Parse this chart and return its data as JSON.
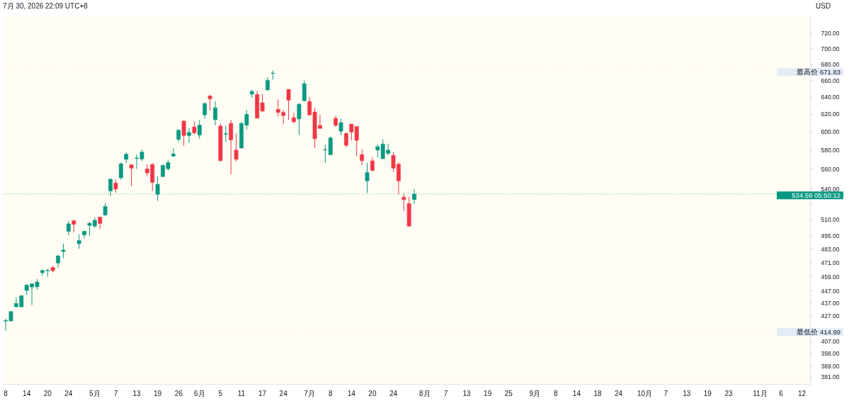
{
  "chart_data": {
    "type": "candlestick",
    "title": "7月 30, 2026 22:09 UTC+8",
    "ylabel": "USD",
    "log": true,
    "categories": [
      "8",
      null,
      null,
      null,
      "14",
      null,
      null,
      null,
      "20",
      null,
      null,
      null,
      "24",
      null,
      null,
      null,
      null,
      "5月",
      null,
      null,
      null,
      "7",
      null,
      null,
      null,
      "13",
      null,
      null,
      null,
      "19",
      null,
      null,
      null,
      "26",
      null,
      null,
      null,
      "6月",
      null,
      null,
      null,
      "5",
      null,
      null,
      null,
      "11",
      null,
      null,
      null,
      "17",
      null,
      null,
      null,
      "24",
      null,
      null,
      null,
      null,
      "7月",
      null,
      null,
      null,
      "8",
      null,
      null,
      null,
      "14",
      null,
      null,
      null,
      "20",
      null,
      null,
      null,
      "24",
      null,
      null,
      null,
      null,
      null,
      "8月",
      null,
      null,
      null,
      "7",
      null,
      null,
      null,
      "13",
      null,
      null,
      null,
      "19",
      null,
      null,
      null,
      "25",
      null,
      null,
      null,
      null,
      "9月",
      null,
      null,
      null,
      "8",
      null,
      null,
      null,
      "14",
      null,
      null,
      null,
      "18",
      null,
      null,
      null,
      "24",
      null,
      null,
      null,
      null,
      "10月",
      null,
      null,
      null,
      "7",
      null,
      null,
      null,
      "13",
      null,
      null,
      null,
      "19",
      null,
      null,
      null,
      "23",
      null,
      null,
      null,
      null,
      null,
      "11月",
      null,
      null,
      null,
      "6",
      null,
      null,
      null,
      "12",
      null
    ],
    "ohlc": [
      [
        422.5,
        424.4,
        414.99,
        423.0
      ],
      [
        422.6,
        430.3,
        422.3,
        430.0
      ],
      [
        433.8,
        441.4,
        433.3,
        436.5
      ],
      [
        433.8,
        443.0,
        433.3,
        442.8
      ],
      [
        447.1,
        452.6,
        443.5,
        451.6
      ],
      [
        450.0,
        453.2,
        435.2,
        452.6
      ],
      [
        450.2,
        456.5,
        447.7,
        454.2
      ],
      [
        462.1,
        465.0,
        459.5,
        463.9
      ],
      [
        463.8,
        465.5,
        458.6,
        464.1
      ],
      [
        466.5,
        468.1,
        462.5,
        463.9
      ],
      [
        470.5,
        477.7,
        466.5,
        476.6
      ],
      [
        480.6,
        487.6,
        474.6,
        481.9
      ],
      [
        498.9,
        508.7,
        495.3,
        505.9
      ],
      [
        508.7,
        509.8,
        497.9,
        505.4
      ],
      [
        487.6,
        496.2,
        482.9,
        490.4
      ],
      [
        495.7,
        499.5,
        492.5,
        498.9
      ],
      [
        504.4,
        507.5,
        494.6,
        506.4
      ],
      [
        503.7,
        512.0,
        502.2,
        509.2
      ],
      [
        512.1,
        512.8,
        501.0,
        506.2
      ],
      [
        514.3,
        525.7,
        513.2,
        522.3
      ],
      [
        537.7,
        550.3,
        532.5,
        549.5
      ],
      [
        545.5,
        549.1,
        536.0,
        539.6
      ],
      [
        550.9,
        566.6,
        549.1,
        565.4
      ],
      [
        570.1,
        577.5,
        566.3,
        575.5
      ],
      [
        564.2,
        565.4,
        542.5,
        560.8
      ],
      [
        571.0,
        575.5,
        560.0,
        571.5
      ],
      [
        570.5,
        580.6,
        568.3,
        577.7
      ],
      [
        560.0,
        564.6,
        552.6,
        555.9
      ],
      [
        564.6,
        566.0,
        537.5,
        546.3
      ],
      [
        534.4,
        552.6,
        527.9,
        544.3
      ],
      [
        552.1,
        564.5,
        552.0,
        563.7
      ],
      [
        560.3,
        569.6,
        558.2,
        566.6
      ],
      [
        573.6,
        581.9,
        572.3,
        575.8
      ],
      [
        591.5,
        603.0,
        588.9,
        601.6
      ],
      [
        611.8,
        613.2,
        584.6,
        595.8
      ],
      [
        595.8,
        603.9,
        587.6,
        599.2
      ],
      [
        605.3,
        611.3,
        597.1,
        598.8
      ],
      [
        596.3,
        613.2,
        592.3,
        607.3
      ],
      [
        619.0,
        633.5,
        614.5,
        632.1
      ],
      [
        641.0,
        642.3,
        624.0,
        637.7
      ],
      [
        613.5,
        634.9,
        607.1,
        627.2
      ],
      [
        606.3,
        609.0,
        568.6,
        568.6
      ],
      [
        597.3,
        606.8,
        588.9,
        597.9
      ],
      [
        609.3,
        613.2,
        554.5,
        591.0
      ],
      [
        579.9,
        598.0,
        567.8,
        570.1
      ],
      [
        582.1,
        611.0,
        582.0,
        609.3
      ],
      [
        607.3,
        624.6,
        602.4,
        619.6
      ],
      [
        643.3,
        648.8,
        639.0,
        646.5
      ],
      [
        642.9,
        647.3,
        615.0,
        615.2
      ],
      [
        633.0,
        643.3,
        622.6,
        623.4
      ],
      [
        648.2,
        663.9,
        647.5,
        659.8
      ],
      [
        668.3,
        671.83,
        661.0,
        668.7
      ],
      [
        625.4,
        636.9,
        617.4,
        621.8
      ],
      [
        621.8,
        624.6,
        608.4,
        618.2
      ],
      [
        648.8,
        649.4,
        613.6,
        636.2
      ],
      [
        615.8,
        621.3,
        609.7,
        611.1
      ],
      [
        614.4,
        632.7,
        596.3,
        631.3
      ],
      [
        635.5,
        659.6,
        634.5,
        655.8
      ],
      [
        634.5,
        639.9,
        618.5,
        619.0
      ],
      [
        622.3,
        627.2,
        582.1,
        592.2
      ],
      [
        607.1,
        619.0,
        603.5,
        603.7
      ],
      [
        580.0,
        585.9,
        566.3,
        580.4
      ],
      [
        575.0,
        594.7,
        574.6,
        593.1
      ],
      [
        615.0,
        618.0,
        605.5,
        607.1
      ],
      [
        600.6,
        615.0,
        596.3,
        610.1
      ],
      [
        598.0,
        598.8,
        582.7,
        585.1
      ],
      [
        608.5,
        608.8,
        590.5,
        599.6
      ],
      [
        605.8,
        606.0,
        573.3,
        590.5
      ],
      [
        575.0,
        580.6,
        563.7,
        568.6
      ],
      [
        547.8,
        566.3,
        535.6,
        556.2
      ],
      [
        568.4,
        572.1,
        557.6,
        558.5
      ],
      [
        579.9,
        585.9,
        572.1,
        583.6
      ],
      [
        570.7,
        591.7,
        570.5,
        586.4
      ],
      [
        576.4,
        586.7,
        574.1,
        579.9
      ],
      [
        574.1,
        578.0,
        557.2,
        560.8
      ],
      [
        564.9,
        567.2,
        534.2,
        547.8
      ],
      [
        531.4,
        535.5,
        518.1,
        529.1
      ],
      [
        525.2,
        531.8,
        503.5,
        503.7
      ],
      [
        529.1,
        539.6,
        524.6,
        534.59
      ],
      null,
      null,
      null,
      null,
      null,
      null,
      null,
      null,
      null,
      null,
      null,
      null,
      null,
      null,
      null,
      null,
      null,
      null,
      null,
      null,
      null,
      null,
      null,
      null,
      null,
      null,
      null,
      null,
      null,
      null,
      null,
      null,
      null,
      null,
      null,
      null,
      null,
      null,
      null,
      null,
      null,
      null,
      null,
      null,
      null,
      null,
      null,
      null,
      null,
      null,
      null,
      null,
      null,
      null,
      null,
      null,
      null,
      null,
      null,
      null,
      null,
      null,
      null,
      null,
      null,
      null,
      null,
      null,
      null,
      null,
      null,
      null,
      null,
      null,
      null
    ],
    "colors": [
      "#089981",
      "#089981",
      "#089981",
      "#089981",
      "#089981",
      "#089981",
      "#089981",
      "#089981",
      "#089981",
      "#f23645",
      "#089981",
      "#089981",
      "#089981",
      "#f23645",
      "#089981",
      "#089981",
      "#089981",
      "#089981",
      "#f23645",
      "#089981",
      "#089981",
      "#f23645",
      "#089981",
      "#089981",
      "#f23645",
      "#089981",
      "#089981",
      "#f23645",
      "#f23645",
      "#089981",
      "#089981",
      "#089981",
      "#089981",
      "#089981",
      "#f23645",
      "#089981",
      "#f23645",
      "#089981",
      "#089981",
      "#f23645",
      "#089981",
      "#f23645",
      "#089981",
      "#f23645",
      "#f23645",
      "#089981",
      "#089981",
      "#089981",
      "#f23645",
      "#f23645",
      "#089981",
      "#089981",
      "#f23645",
      "#f23645",
      "#f23645",
      "#f23645",
      "#089981",
      "#089981",
      "#f23645",
      "#f23645",
      "#f23645",
      "#089981",
      "#089981",
      "#f23645",
      "#089981",
      "#f23645",
      "#f23645",
      "#f23645",
      "#f23645",
      "#089981",
      "#f23645",
      "#089981",
      "#089981",
      "#089981",
      "#f23645",
      "#f23645",
      "#f23645",
      "#f23645",
      "#089981",
      null,
      null,
      null,
      null,
      null,
      null,
      null,
      null,
      null,
      null,
      null,
      null,
      null,
      null,
      null,
      null,
      null,
      null,
      null,
      null,
      null,
      null,
      null,
      null,
      null,
      null,
      null,
      null,
      null,
      null,
      null,
      null,
      null,
      null,
      null,
      null,
      null,
      null,
      null,
      null,
      null,
      null,
      null,
      null,
      null,
      null,
      null,
      null,
      null,
      null,
      null,
      null,
      null,
      null,
      null,
      null,
      null,
      null,
      null,
      null,
      null,
      null,
      null,
      null,
      null,
      null,
      null,
      null,
      null,
      null,
      null,
      null,
      null,
      null,
      null
    ],
    "ylim": [
      376,
      744
    ],
    "yticks": [
      {
        "value": 381,
        "label": "381.00"
      },
      {
        "value": 389,
        "label": "389.00"
      },
      {
        "value": 398,
        "label": "398.00"
      },
      {
        "value": 407,
        "label": "407.00"
      },
      {
        "value": 417,
        "label": null
      },
      {
        "value": 427,
        "label": "427.00"
      },
      {
        "value": 437,
        "label": "437.00"
      },
      {
        "value": 447,
        "label": "447.00"
      },
      {
        "value": 459,
        "label": "459.00"
      },
      {
        "value": 471,
        "label": "471.00"
      },
      {
        "value": 483,
        "label": "483.00"
      },
      {
        "value": 495,
        "label": "495.00"
      },
      {
        "value": 510,
        "label": "510.00"
      },
      {
        "value": 525,
        "label": null
      },
      {
        "value": 540,
        "label": "540.00"
      },
      {
        "value": 560,
        "label": "560.00"
      },
      {
        "value": 580,
        "label": "580.00"
      },
      {
        "value": 600,
        "label": "600.00"
      },
      {
        "value": 620,
        "label": "620.00"
      },
      {
        "value": 640,
        "label": "640.00"
      },
      {
        "value": 660,
        "label": "660.00"
      },
      {
        "value": 680,
        "label": "680.00"
      },
      {
        "value": 700,
        "label": "700.00"
      },
      {
        "value": 720,
        "label": "720.00"
      }
    ],
    "ref_lines": [
      {
        "axis": "y",
        "value": 671.83,
        "label": "最高价 671.83",
        "color": "#e3ebf7",
        "line_style": "dotted"
      },
      {
        "axis": "y",
        "value": 414.99,
        "label": "最低价 414.99",
        "color": "#e3ebf7",
        "line_style": "dotted"
      },
      {
        "axis": "y",
        "value": 534.59,
        "label": "534.59 05:50:12",
        "color": "#089981",
        "line_style": "dotted"
      }
    ]
  }
}
